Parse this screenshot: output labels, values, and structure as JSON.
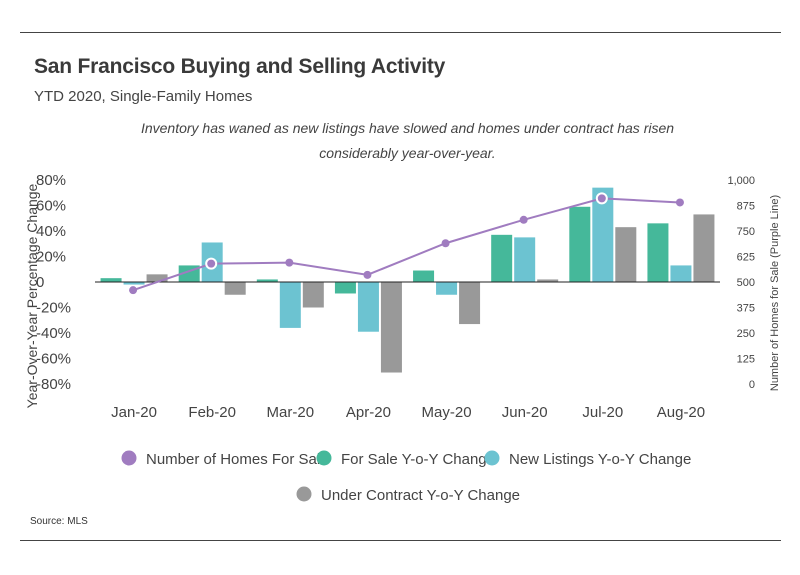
{
  "title": "San Francisco Buying and Selling Activity",
  "subtitle": "YTD 2020, Single-Family Homes",
  "annotation": "Inventory has waned as new listings have slowed and homes under contract has risen considerably year-over-year.",
  "source": "Source:  MLS",
  "chart_data": {
    "type": "bar",
    "categories": [
      "Jan-20",
      "Feb-20",
      "Mar-20",
      "Apr-20",
      "May-20",
      "Jun-20",
      "Jul-20",
      "Aug-20"
    ],
    "y_left": {
      "label": "Year-Over-Year Percentage Change",
      "range": [
        -80,
        80
      ],
      "ticks": [
        80,
        60,
        40,
        20,
        0,
        -20,
        -40,
        -60,
        -80
      ],
      "tick_labels": [
        "80%",
        "60%",
        "40%",
        "20%",
        "0",
        "-20%",
        "-40%",
        "-60%",
        "-80%"
      ]
    },
    "y_right": {
      "label": "Number of Homes for Sale (Purple Line)",
      "range": [
        0,
        1000
      ],
      "ticks": [
        1000,
        875,
        750,
        625,
        500,
        375,
        250,
        125,
        0
      ],
      "tick_labels": [
        "1,000",
        "875",
        "750",
        "625",
        "500",
        "375",
        "250",
        "125",
        "0"
      ]
    },
    "series": [
      {
        "name": "Number of Homes For Sale",
        "kind": "line",
        "axis": "right",
        "color": "#a07cc0",
        "values": [
          460,
          590,
          595,
          535,
          690,
          805,
          910,
          890
        ]
      },
      {
        "name": "For Sale Y-o-Y Change",
        "kind": "bar",
        "axis": "left",
        "color": "#45b89a",
        "values": [
          3,
          13,
          2,
          -9,
          9,
          37,
          59,
          46
        ]
      },
      {
        "name": "New Listings Y-o-Y Change",
        "kind": "bar",
        "axis": "left",
        "color": "#6cc3d1",
        "values": [
          -2,
          31,
          -36,
          -39,
          -10,
          35,
          74,
          13
        ]
      },
      {
        "name": "Under Contract Y-o-Y Change",
        "kind": "bar",
        "axis": "left",
        "color": "#999999",
        "values": [
          6,
          -10,
          -20,
          -71,
          -33,
          2,
          43,
          53
        ]
      }
    ],
    "highlighted_points": [
      1,
      6
    ],
    "legend": {
      "placement": "bottom"
    }
  }
}
